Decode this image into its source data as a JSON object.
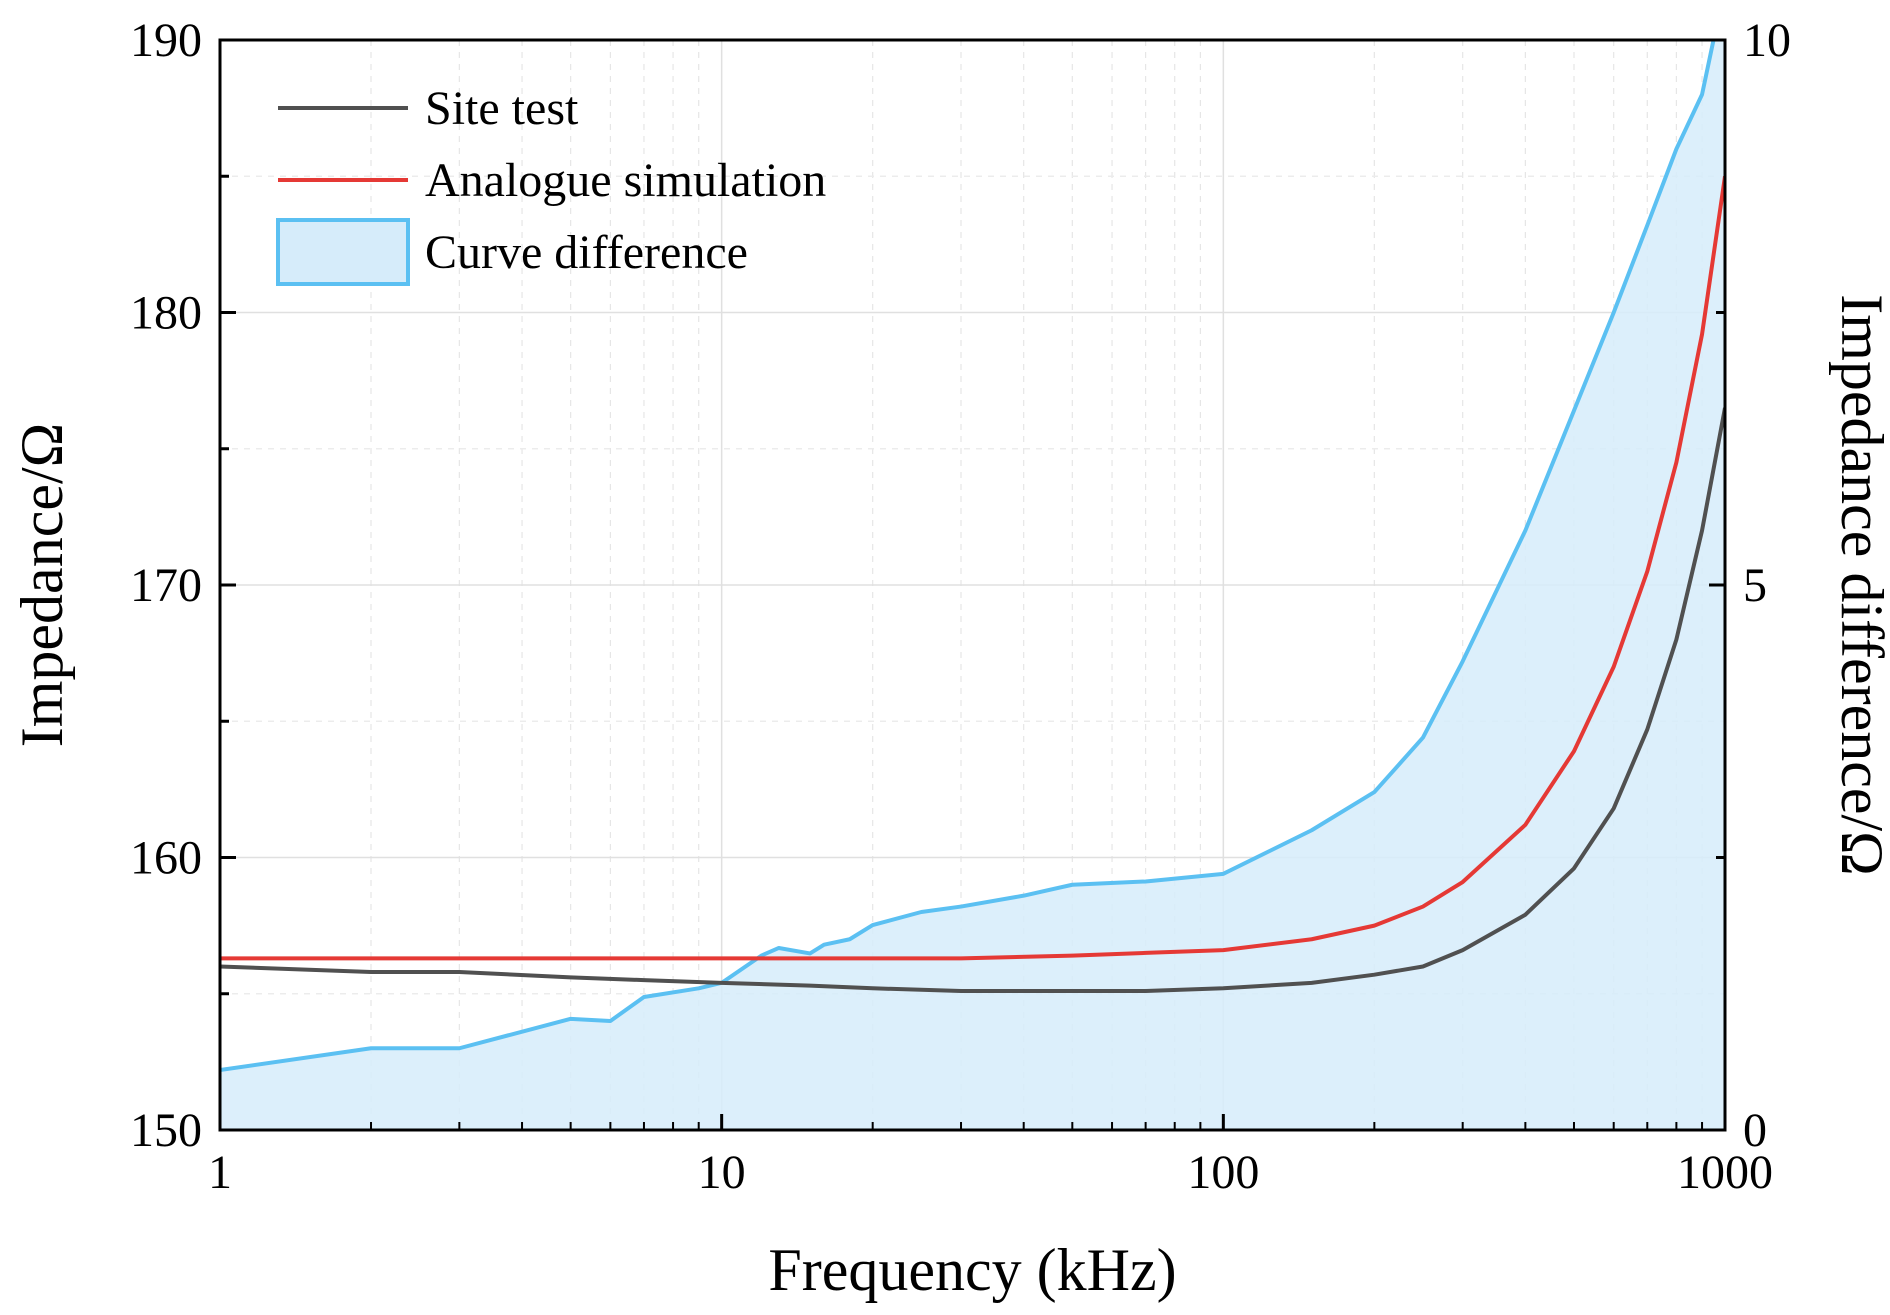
{
  "chart_data": {
    "type": "line",
    "title": "",
    "xlabel": "Frequency (kHz)",
    "ylabel": "Impedance/Ω",
    "y2label": "Impedance difference/Ω",
    "xscale": "log",
    "xlim": [
      1,
      1000
    ],
    "ylim": [
      150,
      190
    ],
    "y2lim": [
      0,
      10
    ],
    "x_ticks": [
      1,
      10,
      100,
      1000
    ],
    "x_tick_labels": [
      "1",
      "10",
      "100",
      "1000"
    ],
    "y_ticks": [
      150,
      160,
      170,
      180,
      190
    ],
    "y_tick_labels": [
      "150",
      "160",
      "170",
      "180",
      "190"
    ],
    "y2_ticks": [
      0,
      5,
      10
    ],
    "y2_tick_labels": [
      "0",
      "5",
      "10"
    ],
    "grid": true,
    "legend_position": "top-left",
    "series": [
      {
        "name": "Site test",
        "axis": "left",
        "style": "line",
        "color": "#505050",
        "x": [
          1,
          2,
          3,
          5,
          7,
          10,
          15,
          20,
          30,
          50,
          70,
          100,
          150,
          200,
          250,
          300,
          400,
          500,
          600,
          700,
          800,
          900,
          1000
        ],
        "y": [
          156.0,
          155.8,
          155.8,
          155.6,
          155.5,
          155.4,
          155.3,
          155.2,
          155.1,
          155.1,
          155.1,
          155.2,
          155.4,
          155.7,
          156.0,
          156.6,
          157.9,
          159.6,
          161.8,
          164.7,
          168.0,
          172.0,
          176.5
        ]
      },
      {
        "name": "Analogue simulation",
        "axis": "left",
        "style": "line",
        "color": "#e53935",
        "x": [
          1,
          2,
          5,
          10,
          20,
          30,
          50,
          70,
          100,
          150,
          200,
          250,
          300,
          400,
          500,
          600,
          700,
          800,
          900,
          1000
        ],
        "y": [
          156.3,
          156.3,
          156.3,
          156.3,
          156.3,
          156.3,
          156.4,
          156.5,
          156.6,
          157.0,
          157.5,
          158.2,
          159.1,
          161.2,
          163.9,
          167.0,
          170.5,
          174.5,
          179.2,
          185.0
        ]
      },
      {
        "name": "Curve difference",
        "axis": "right",
        "style": "area",
        "color": "#5bc0f2",
        "fill": "#d6ecfa",
        "x": [
          1,
          2,
          3,
          5,
          6,
          7,
          9,
          10,
          12,
          13,
          15,
          16,
          18,
          20,
          25,
          30,
          40,
          50,
          70,
          100,
          150,
          200,
          250,
          300,
          400,
          500,
          600,
          700,
          800,
          900,
          1000
        ],
        "y": [
          0.55,
          0.75,
          0.75,
          1.02,
          1.0,
          1.22,
          1.3,
          1.35,
          1.6,
          1.67,
          1.62,
          1.7,
          1.75,
          1.88,
          2.0,
          2.05,
          2.15,
          2.25,
          2.28,
          2.35,
          2.75,
          3.1,
          3.6,
          4.3,
          5.5,
          6.6,
          7.5,
          8.3,
          9.0,
          9.5,
          10.5
        ]
      }
    ]
  }
}
